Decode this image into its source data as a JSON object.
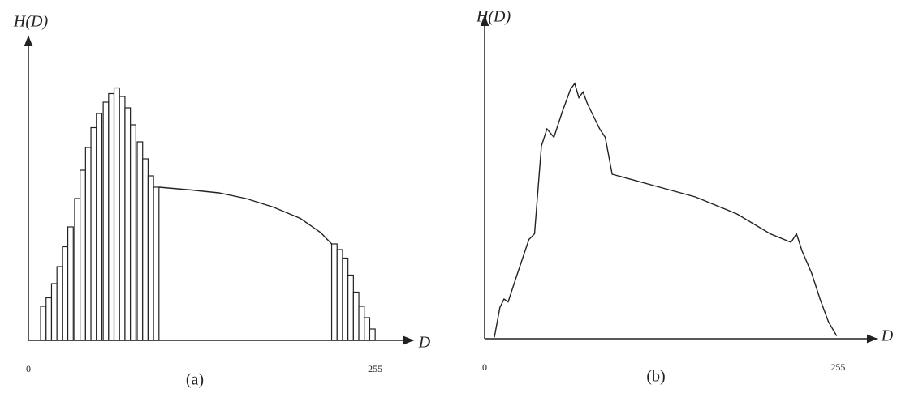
{
  "chart_data": [
    {
      "type": "bar",
      "ylabel": "H(D)",
      "xlabel": "D",
      "caption": "(a)",
      "xlim": [
        0,
        277
      ],
      "xticks": [
        0,
        255
      ],
      "ylim": [
        0,
        100
      ],
      "bar_width": 4,
      "color": "#222",
      "x": [
        11,
        15,
        19,
        23,
        27,
        31,
        36,
        40,
        44,
        48,
        52,
        57,
        61,
        65,
        69,
        73,
        77,
        82,
        86,
        90,
        94,
        225,
        229,
        233,
        237,
        241,
        245,
        249,
        253
      ],
      "values": [
        12,
        15,
        20,
        26,
        33,
        40,
        50,
        60,
        68,
        75,
        80,
        84,
        87,
        89,
        86,
        82,
        76,
        70,
        64,
        58,
        54,
        34,
        32,
        29,
        23,
        17,
        12,
        8,
        4
      ],
      "curve_x": [
        96,
        120,
        140,
        160,
        180,
        200,
        215,
        223
      ],
      "curve_values": [
        54,
        53,
        52,
        50,
        47,
        43,
        38,
        34
      ]
    },
    {
      "type": "line",
      "ylabel": "H(D)",
      "xlabel": "D",
      "caption": "(b)",
      "xlim": [
        0,
        277
      ],
      "xticks": [
        0,
        255
      ],
      "ylim": [
        0,
        100
      ],
      "color": "#222",
      "x": [
        7,
        11,
        14,
        17,
        23,
        32,
        36,
        41,
        45,
        50,
        56,
        62,
        65,
        68,
        71,
        74,
        80,
        83,
        87,
        92,
        122,
        152,
        182,
        206,
        221,
        225,
        229,
        236,
        242,
        248,
        254
      ],
      "values": [
        0.5,
        11,
        14,
        13,
        22,
        35,
        37,
        68,
        74,
        71,
        80,
        88,
        90,
        85,
        87,
        83,
        77,
        74,
        71,
        58,
        54,
        50,
        44,
        37,
        34,
        37,
        31,
        23,
        14,
        6,
        1
      ]
    }
  ]
}
